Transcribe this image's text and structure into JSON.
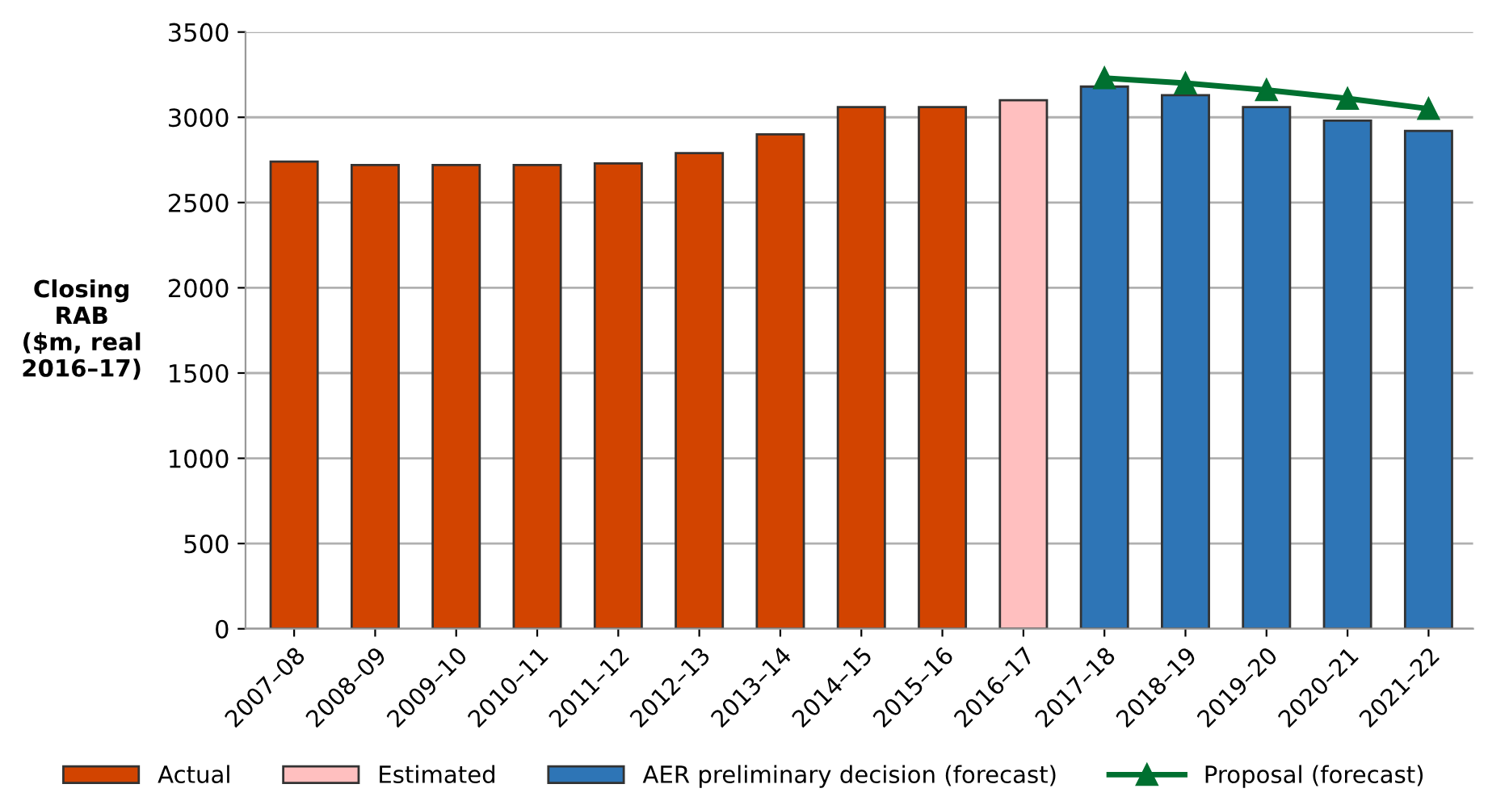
{
  "chart_data": {
    "type": "bar",
    "ylabel": "Closing\nRAB\n($m, real\n2016–17)",
    "categories": [
      "2007–08",
      "2008–09",
      "2009–10",
      "2010–11",
      "2011–12",
      "2012–13",
      "2013–14",
      "2014–15",
      "2015–16",
      "2016–17",
      "2017–18",
      "2018–19",
      "2019–20",
      "2020–21",
      "2021–22"
    ],
    "series": [
      {
        "name": "Actual",
        "color": "#d24400",
        "values": [
          2740,
          2720,
          2720,
          2720,
          2730,
          2790,
          2900,
          3060,
          3060,
          null,
          null,
          null,
          null,
          null,
          null
        ]
      },
      {
        "name": "Estimated",
        "color": "#ffbfbf",
        "values": [
          null,
          null,
          null,
          null,
          null,
          null,
          null,
          null,
          null,
          3100,
          null,
          null,
          null,
          null,
          null
        ]
      },
      {
        "name": "AER preliminary decision (forecast)",
        "color": "#2e75b6",
        "values": [
          null,
          null,
          null,
          null,
          null,
          null,
          null,
          null,
          null,
          null,
          3180,
          3130,
          3060,
          2980,
          2920
        ]
      },
      {
        "name": "Proposal (forecast)",
        "type": "line",
        "color": "#007030",
        "marker": "triangle",
        "values": [
          null,
          null,
          null,
          null,
          null,
          null,
          null,
          null,
          null,
          null,
          3230,
          3200,
          3160,
          3110,
          3050
        ]
      }
    ],
    "ylim": [
      0,
      3500
    ],
    "yticks": [
      0,
      500,
      1000,
      1500,
      2000,
      2500,
      3000,
      3500
    ],
    "grid": "y",
    "legend": "bottom"
  }
}
